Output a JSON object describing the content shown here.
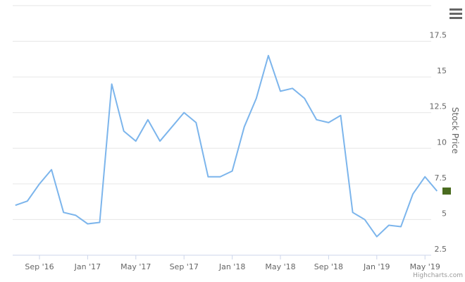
{
  "chart_data": {
    "type": "line",
    "y_axis_title": "Stock Price",
    "credits": "Highcharts.com",
    "x": [
      "2016-07",
      "2016-08",
      "2016-09",
      "2016-10",
      "2016-11",
      "2016-12",
      "2017-01",
      "2017-02",
      "2017-03",
      "2017-04",
      "2017-05",
      "2017-06",
      "2017-07",
      "2017-08",
      "2017-09",
      "2017-10",
      "2017-11",
      "2017-12",
      "2018-01",
      "2018-02",
      "2018-03",
      "2018-04",
      "2018-05",
      "2018-06",
      "2018-07",
      "2018-08",
      "2018-09",
      "2018-10",
      "2018-11",
      "2018-12",
      "2019-01",
      "2019-02",
      "2019-03",
      "2019-04",
      "2019-05",
      "2019-06"
    ],
    "series": [
      {
        "color": "#7cb5ec",
        "values": [
          6.0,
          6.3,
          7.5,
          8.5,
          5.5,
          5.3,
          4.7,
          4.8,
          14.5,
          11.2,
          10.5,
          12.0,
          10.5,
          11.5,
          12.5,
          11.8,
          8.0,
          8.0,
          8.4,
          11.5,
          13.5,
          16.5,
          14.0,
          14.2,
          13.5,
          12.0,
          11.8,
          12.3,
          5.5,
          5.0,
          3.8,
          4.6,
          4.5,
          6.8,
          8.0,
          7.0
        ]
      }
    ],
    "ylim": [
      2.5,
      20
    ],
    "yticks": [
      2.5,
      5,
      7.5,
      10,
      12.5,
      15,
      17.5
    ],
    "xticks": [
      {
        "value": "2016-09",
        "label": "Sep '16"
      },
      {
        "value": "2017-01",
        "label": "Jan '17"
      },
      {
        "value": "2017-05",
        "label": "May '17"
      },
      {
        "value": "2017-09",
        "label": "Sep '17"
      },
      {
        "value": "2018-01",
        "label": "Jan '18"
      },
      {
        "value": "2018-05",
        "label": "May '18"
      },
      {
        "value": "2018-09",
        "label": "Sep '18"
      },
      {
        "value": "2019-01",
        "label": "Jan '19"
      },
      {
        "value": "2019-05",
        "label": "May '19"
      }
    ],
    "last_marker_color": "#4a6b1f",
    "grid": true
  }
}
